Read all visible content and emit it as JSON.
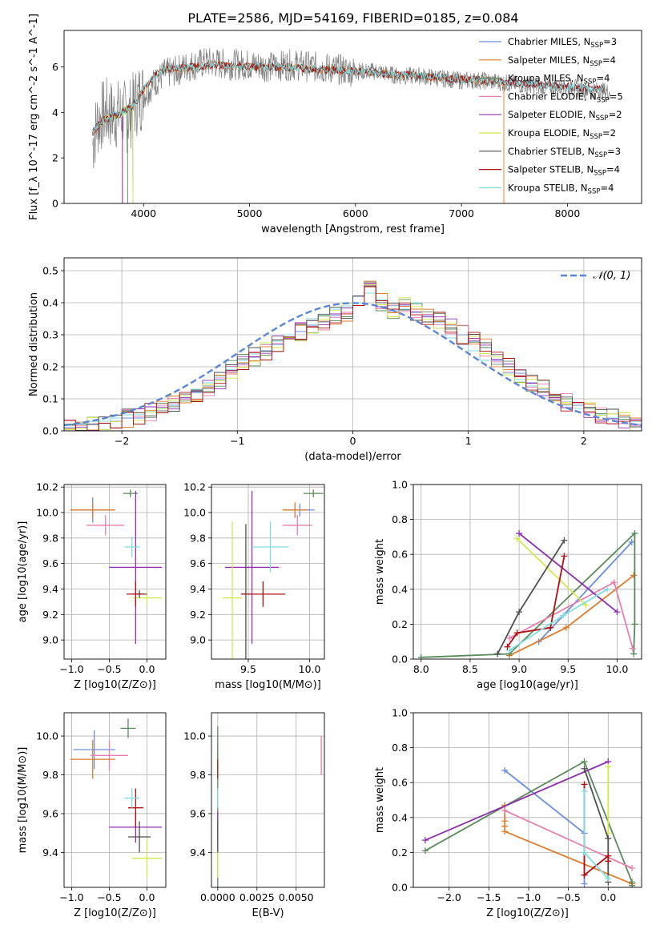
{
  "figure": {
    "title": "PLATE=2586, MJD=54169, FIBERID=0185, z=0.084"
  },
  "colors": [
    "#6a8fdf",
    "#e07a2a",
    "#5a8a5a",
    "#e87fb0",
    "#9030b0",
    "#d4e84a",
    "#505050",
    "#b01010",
    "#80dde0"
  ],
  "chart_data": [
    {
      "id": "spectrum",
      "type": "line",
      "xlabel": "wavelength [Angstrom, rest frame]",
      "ylabel": "Flux [f_λ 10^-17 erg cm^-2 s^-1 A^-1]",
      "xlim": [
        3250,
        8700
      ],
      "ylim": [
        0,
        7.6
      ],
      "xticks": [
        4000,
        5000,
        6000,
        7000,
        8000
      ],
      "yticks": [
        0,
        2,
        4,
        6
      ],
      "grid": false,
      "legend_position": "top-right",
      "legend": [
        {
          "label": "Chabrier MILES, N",
          "sub": "SSP",
          "n": "=3"
        },
        {
          "label": "Salpeter MILES, N",
          "sub": "SSP",
          "n": "=4"
        },
        {
          "label": "Kroupa MILES, N",
          "sub": "SSP",
          "n": "=4"
        },
        {
          "label": "Chabrier ELODIE, N",
          "sub": "SSP",
          "n": "=5"
        },
        {
          "label": "Salpeter ELODIE, N",
          "sub": "SSP",
          "n": "=2"
        },
        {
          "label": "Kroupa ELODIE, N",
          "sub": "SSP",
          "n": "=2"
        },
        {
          "label": "Chabrier STELIB, N",
          "sub": "SSP",
          "n": "=3"
        },
        {
          "label": "Salpeter STELIB, N",
          "sub": "SSP",
          "n": "=4"
        },
        {
          "label": "Kroupa STELIB, N",
          "sub": "SSP",
          "n": "=4"
        }
      ],
      "data_series": {
        "name": "data",
        "x": [
          3520,
          3560,
          3600,
          3650,
          3700,
          3750,
          3800,
          3850,
          3900,
          3950,
          4000,
          4050,
          4100,
          4150,
          4200,
          4300,
          4400,
          4500,
          4600,
          4800,
          5000,
          5200,
          5400,
          5600,
          5800,
          6000,
          6200,
          6400,
          6600,
          6800,
          7000,
          7200,
          7400,
          7600,
          7800,
          8000,
          8200,
          8400
        ],
        "y": [
          2.6,
          3.5,
          3.8,
          4.0,
          3.9,
          3.9,
          4.0,
          3.7,
          4.2,
          4.6,
          4.8,
          5.0,
          5.3,
          5.5,
          5.7,
          5.8,
          6.0,
          6.1,
          6.2,
          6.1,
          6.1,
          6.0,
          6.1,
          6.0,
          5.9,
          5.8,
          5.8,
          5.6,
          5.6,
          5.5,
          5.4,
          5.4,
          5.3,
          5.2,
          5.1,
          5.1,
          5.0,
          4.9
        ]
      },
      "model_x": [
        3520,
        3600,
        3700,
        3800,
        3900,
        4000,
        4100,
        4200,
        4300,
        4500,
        4700,
        5000,
        5300,
        5600,
        6000,
        6300,
        6600,
        6900,
        7200,
        7500,
        7800,
        8100,
        8400
      ],
      "model_y": [
        3.1,
        3.6,
        3.8,
        4.0,
        4.3,
        5.0,
        5.6,
        5.9,
        5.9,
        6.0,
        6.1,
        6.0,
        6.0,
        5.9,
        5.8,
        5.7,
        5.6,
        5.5,
        5.4,
        5.3,
        5.2,
        5.1,
        5.0
      ],
      "model_end": [
        3900,
        7400,
        3850,
        3800,
        3800,
        3900,
        8350,
        8350,
        8350
      ]
    },
    {
      "id": "residuals",
      "type": "histogram",
      "xlabel": "(data-model)/error",
      "ylabel": "Normed distribution",
      "xlim": [
        -2.5,
        2.5
      ],
      "ylim": [
        0,
        0.54
      ],
      "xticks": [
        -2,
        -1,
        0,
        1,
        2
      ],
      "yticks": [
        0,
        0.1,
        0.2,
        0.3,
        0.4,
        0.5
      ],
      "grid": true,
      "legend_position": "top-right",
      "legend": [
        "𝒩(0, 1)"
      ],
      "bin_width": 0.1,
      "bin_start": -2.5,
      "series": [
        {
          "name": "Chabrier MILES",
          "values": [
            0.01,
            0.02,
            0.02,
            0.03,
            0.03,
            0.04,
            0.04,
            0.06,
            0.07,
            0.08,
            0.1,
            0.12,
            0.14,
            0.16,
            0.19,
            0.21,
            0.23,
            0.25,
            0.27,
            0.29,
            0.31,
            0.33,
            0.34,
            0.36,
            0.37,
            0.42,
            0.45,
            0.4,
            0.38,
            0.39,
            0.37,
            0.36,
            0.34,
            0.33,
            0.3,
            0.28,
            0.26,
            0.22,
            0.2,
            0.18,
            0.15,
            0.13,
            0.11,
            0.09,
            0.08,
            0.06,
            0.05,
            0.04,
            0.03,
            0.02
          ]
        },
        {
          "name": "Kroupa STELIB",
          "values": [
            0.02,
            0.02,
            0.03,
            0.03,
            0.04,
            0.05,
            0.05,
            0.06,
            0.07,
            0.09,
            0.11,
            0.13,
            0.15,
            0.17,
            0.2,
            0.22,
            0.24,
            0.27,
            0.28,
            0.3,
            0.33,
            0.35,
            0.36,
            0.38,
            0.39,
            0.4,
            0.43,
            0.41,
            0.39,
            0.38,
            0.4,
            0.38,
            0.32,
            0.29,
            0.27,
            0.25,
            0.22,
            0.2,
            0.18,
            0.16,
            0.14,
            0.12,
            0.1,
            0.08,
            0.07,
            0.06,
            0.05,
            0.04,
            0.03,
            0.03
          ]
        }
      ],
      "reference": {
        "name": "𝒩(0, 1)",
        "mean": 0,
        "sigma": 1
      }
    },
    {
      "id": "age-vs-Z",
      "type": "errorbar",
      "xlabel": "Z [log10(Z/Z⊙)]",
      "ylabel": "age  [log10(age/yr)]",
      "xlim": [
        -1.1,
        0.25
      ],
      "ylim": [
        8.85,
        10.22
      ],
      "xticks": [
        -1.0,
        -0.5,
        0.0
      ],
      "yticks": [
        9.0,
        9.2,
        9.4,
        9.6,
        9.8,
        10.0,
        10.2
      ],
      "grid": true,
      "points": [
        {
          "x": -0.72,
          "y": 10.02,
          "xerr": 0.28,
          "yerr": 0.1,
          "c": 0
        },
        {
          "x": -0.72,
          "y": 10.02,
          "xerr": 0.3,
          "yerr": 0.06,
          "c": 1
        },
        {
          "x": -0.22,
          "y": 10.15,
          "xerr": 0.1,
          "yerr": 0.03,
          "c": 2
        },
        {
          "x": -0.55,
          "y": 9.9,
          "xerr": 0.25,
          "yerr": 0.08,
          "c": 3
        },
        {
          "x": -0.15,
          "y": 9.57,
          "xerr": 0.35,
          "yerr": 0.6,
          "c": 4
        },
        {
          "x": 0.0,
          "y": 9.33,
          "xerr": 0.2,
          "yerr": 0.05,
          "c": 5
        },
        {
          "x": -0.1,
          "y": 9.36,
          "xerr": 0.1,
          "yerr": 0.03,
          "c": 6
        },
        {
          "x": -0.15,
          "y": 9.36,
          "xerr": 0.12,
          "yerr": 0.1,
          "c": 7
        },
        {
          "x": -0.2,
          "y": 9.73,
          "xerr": 0.1,
          "yerr": 0.08,
          "c": 8
        }
      ]
    },
    {
      "id": "age-vs-mass",
      "type": "errorbar",
      "xlabel": "mass [log10(M/M⊙)]",
      "ylabel": "",
      "xlim": [
        9.2,
        10.12
      ],
      "ylim": [
        8.85,
        10.22
      ],
      "xticks": [
        9.5,
        10.0
      ],
      "yticks": [
        9.0,
        9.2,
        9.4,
        9.6,
        9.8,
        10.0,
        10.2
      ],
      "grid": true,
      "points": [
        {
          "x": 9.92,
          "y": 10.02,
          "xerr": 0.12,
          "yerr": 0.05,
          "c": 0
        },
        {
          "x": 9.88,
          "y": 10.02,
          "xerr": 0.1,
          "yerr": 0.06,
          "c": 1
        },
        {
          "x": 10.03,
          "y": 10.15,
          "xerr": 0.08,
          "yerr": 0.03,
          "c": 2
        },
        {
          "x": 9.9,
          "y": 9.9,
          "xerr": 0.12,
          "yerr": 0.08,
          "c": 3
        },
        {
          "x": 9.53,
          "y": 9.57,
          "xerr": 0.22,
          "yerr": 0.6,
          "c": 4
        },
        {
          "x": 9.37,
          "y": 9.33,
          "xerr": 0.08,
          "yerr": 0.6,
          "c": 5
        },
        {
          "x": 9.48,
          "y": 9.36,
          "xerr": 0.03,
          "yerr": 0.55,
          "c": 6
        },
        {
          "x": 9.62,
          "y": 9.36,
          "xerr": 0.18,
          "yerr": 0.1,
          "c": 7
        },
        {
          "x": 9.68,
          "y": 9.73,
          "xerr": 0.15,
          "yerr": 0.2,
          "c": 8
        }
      ]
    },
    {
      "id": "weight-vs-age",
      "type": "line",
      "xlabel": "age  [log10(age/yr)]",
      "ylabel": "mass weight",
      "xlim": [
        7.92,
        10.25
      ],
      "ylim": [
        0,
        1.0
      ],
      "xticks": [
        8.0,
        8.5,
        9.0,
        9.5,
        10.0
      ],
      "yticks": [
        0.0,
        0.2,
        0.4,
        0.6,
        0.8,
        1.0
      ],
      "grid": true,
      "series": [
        {
          "c": 0,
          "x": [
            9.2,
            10.15
          ],
          "y": [
            0.1,
            0.67
          ]
        },
        {
          "c": 1,
          "x": [
            8.9,
            9.48,
            10.17
          ],
          "y": [
            0.02,
            0.18,
            0.48
          ]
        },
        {
          "c": 2,
          "x": [
            8.0,
            8.9,
            10.18,
            10.18,
            10.17
          ],
          "y": [
            0.01,
            0.03,
            0.72,
            0.2,
            0.03
          ]
        },
        {
          "c": 3,
          "x": [
            8.9,
            9.97,
            10.16
          ],
          "y": [
            0.12,
            0.44,
            0.06
          ]
        },
        {
          "c": 4,
          "x": [
            9.0,
            10.0
          ],
          "y": [
            0.72,
            0.27
          ]
        },
        {
          "c": 5,
          "x": [
            8.98,
            9.68
          ],
          "y": [
            0.69,
            0.31
          ]
        },
        {
          "c": 6,
          "x": [
            8.78,
            9.0,
            9.46
          ],
          "y": [
            0.03,
            0.27,
            0.68
          ]
        },
        {
          "c": 7,
          "x": [
            8.88,
            8.98,
            9.32,
            9.46
          ],
          "y": [
            0.07,
            0.15,
            0.18,
            0.59
          ]
        },
        {
          "c": 8,
          "x": [
            8.9,
            9.45,
            9.9
          ],
          "y": [
            0.05,
            0.25,
            0.4
          ]
        }
      ]
    },
    {
      "id": "mass-vs-Z",
      "type": "errorbar",
      "xlabel": "Z [log10(Z/Z⊙)]",
      "ylabel": "mass [log10(M/M⊙)]",
      "xlim": [
        -1.1,
        0.25
      ],
      "ylim": [
        9.22,
        10.12
      ],
      "xticks": [
        -1.0,
        -0.5,
        0.0
      ],
      "yticks": [
        9.4,
        9.6,
        9.8,
        10.0
      ],
      "grid": true,
      "points": [
        {
          "x": -0.7,
          "y": 9.93,
          "xerr": 0.28,
          "yerr": 0.1,
          "c": 0
        },
        {
          "x": -0.72,
          "y": 9.88,
          "xerr": 0.3,
          "yerr": 0.1,
          "c": 1
        },
        {
          "x": -0.25,
          "y": 10.04,
          "xerr": 0.1,
          "yerr": 0.05,
          "c": 2
        },
        {
          "x": -0.5,
          "y": 9.9,
          "xerr": 0.25,
          "yerr": 0.08,
          "c": 3
        },
        {
          "x": -0.15,
          "y": 9.53,
          "xerr": 0.35,
          "yerr": 0.08,
          "c": 4
        },
        {
          "x": 0.0,
          "y": 9.37,
          "xerr": 0.2,
          "yerr": 0.1,
          "c": 5
        },
        {
          "x": -0.1,
          "y": 9.48,
          "xerr": 0.15,
          "yerr": 0.08,
          "c": 6
        },
        {
          "x": -0.15,
          "y": 9.63,
          "xerr": 0.1,
          "yerr": 0.1,
          "c": 7
        },
        {
          "x": -0.2,
          "y": 9.68,
          "xerr": 0.1,
          "yerr": 0.05,
          "c": 8
        }
      ]
    },
    {
      "id": "mass-vs-ebv",
      "type": "errorbar",
      "xlabel": "E(B-V)",
      "ylabel": "",
      "xlim": [
        -0.0004,
        0.0068
      ],
      "ylim": [
        9.22,
        10.12
      ],
      "xticks": [
        0.0,
        0.0025,
        0.005
      ],
      "xticklabels": [
        "0.0000",
        "0.0025",
        "0.0050"
      ],
      "yticks": [
        9.4,
        9.6,
        9.8,
        10.0
      ],
      "grid": true,
      "points": [
        {
          "x": 0.0,
          "y": 9.92,
          "xerr": 0,
          "yerr": 0.05,
          "c": 0
        },
        {
          "x": 0.0,
          "y": 9.88,
          "xerr": 0,
          "yerr": 0.05,
          "c": 1
        },
        {
          "x": 0.0,
          "y": 9.6,
          "xerr": 0,
          "yerr": 0.45,
          "c": 2
        },
        {
          "x": 0.0066,
          "y": 9.9,
          "xerr": 0,
          "yerr": 0.1,
          "c": 3
        },
        {
          "x": 0.0,
          "y": 9.53,
          "xerr": 0,
          "yerr": 0.08,
          "c": 4
        },
        {
          "x": 0.0,
          "y": 9.37,
          "xerr": 0,
          "yerr": 0.1,
          "c": 5
        },
        {
          "x": 0.0,
          "y": 9.48,
          "xerr": 0,
          "yerr": 0.08,
          "c": 6
        },
        {
          "x": 0.0,
          "y": 9.83,
          "xerr": 0,
          "yerr": 0.05,
          "c": 7
        },
        {
          "x": 0.0,
          "y": 9.68,
          "xerr": 0,
          "yerr": 0.05,
          "c": 8
        }
      ]
    },
    {
      "id": "weight-vs-Z",
      "type": "line",
      "xlabel": "Z [log10(Z/Z⊙)]",
      "ylabel": "mass weight",
      "xlim": [
        -2.45,
        0.42
      ],
      "ylim": [
        0,
        1.0
      ],
      "xticks": [
        -2.0,
        -1.5,
        -1.0,
        -0.5,
        0.0
      ],
      "yticks": [
        0.0,
        0.2,
        0.4,
        0.6,
        0.8,
        1.0
      ],
      "grid": true,
      "series": [
        {
          "c": 0,
          "x": [
            -1.3,
            -0.3,
            -0.3
          ],
          "y": [
            0.67,
            0.31,
            0.02
          ]
        },
        {
          "c": 1,
          "x": [
            -1.3,
            -1.3,
            -1.3,
            -1.3,
            0.3
          ],
          "y": [
            0.47,
            0.38,
            0.35,
            0.32,
            0.02
          ]
        },
        {
          "c": 2,
          "x": [
            -2.3,
            -0.3,
            0.3,
            0.3
          ],
          "y": [
            0.21,
            0.72,
            0.03,
            0.01
          ]
        },
        {
          "c": 3,
          "x": [
            -1.3,
            0.3
          ],
          "y": [
            0.44,
            0.11
          ]
        },
        {
          "c": 4,
          "x": [
            -2.3,
            0.0
          ],
          "y": [
            0.27,
            0.72
          ]
        },
        {
          "c": 5,
          "x": [
            0.0,
            0.0
          ],
          "y": [
            0.69,
            0.31
          ]
        },
        {
          "c": 6,
          "x": [
            -0.3,
            0.0,
            0.0
          ],
          "y": [
            0.68,
            0.28,
            0.03
          ]
        },
        {
          "c": 7,
          "x": [
            -0.3,
            -0.3,
            0.0,
            0.0
          ],
          "y": [
            0.59,
            0.07,
            0.18,
            0.15
          ]
        },
        {
          "c": 8,
          "x": [
            -0.3,
            -0.3,
            0.0
          ],
          "y": [
            0.55,
            0.2,
            0.05
          ]
        }
      ]
    }
  ]
}
